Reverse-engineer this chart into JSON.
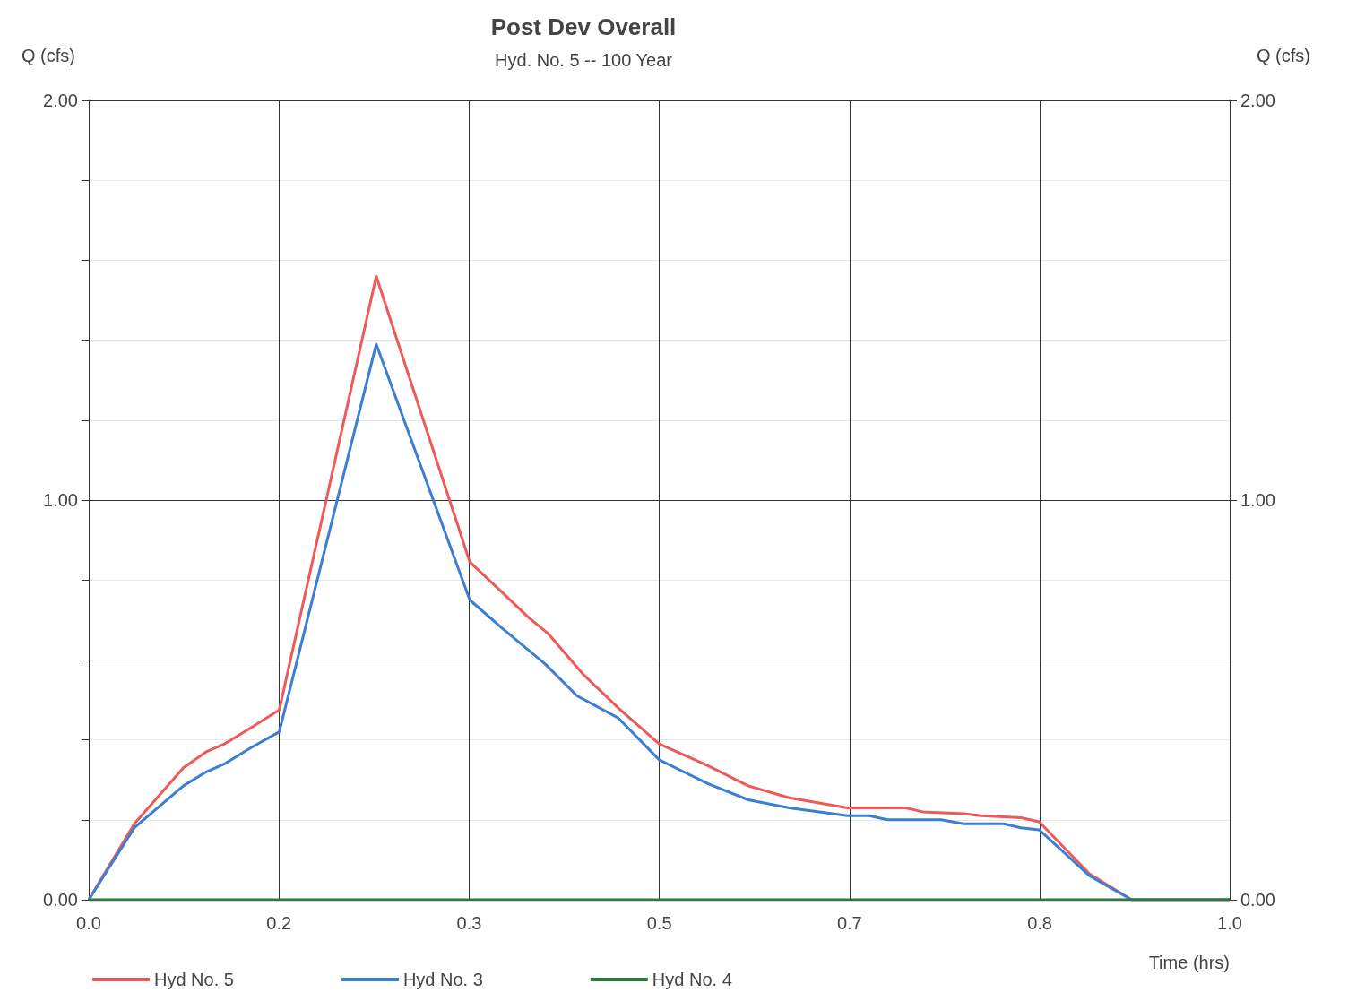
{
  "chart_data": {
    "type": "line",
    "title": "Post Dev Overall",
    "subtitle": "Hyd. No. 5 -- 100 Year",
    "xlabel": "Time (hrs)",
    "ylabel": "Q (cfs)",
    "y2label": "Q (cfs)",
    "xlim": [
      0,
      1
    ],
    "xticks": [
      {
        "value": 0,
        "label": "0.0"
      },
      {
        "value": 0.1667,
        "label": "0.2"
      },
      {
        "value": 0.3333,
        "label": "0.3"
      },
      {
        "value": 0.5,
        "label": "0.5"
      },
      {
        "value": 0.6667,
        "label": "0.7"
      },
      {
        "value": 0.8333,
        "label": "0.8"
      },
      {
        "value": 1,
        "label": "1.0"
      }
    ],
    "ylim": [
      0,
      2
    ],
    "yticks": [
      {
        "value": 0,
        "label": "0.00"
      },
      {
        "value": 0.2,
        "label": null
      },
      {
        "value": 0.4,
        "label": null
      },
      {
        "value": 0.6,
        "label": null
      },
      {
        "value": 0.8,
        "label": null
      },
      {
        "value": 1,
        "label": "1.00"
      },
      {
        "value": 1.2,
        "label": null
      },
      {
        "value": 1.4,
        "label": null
      },
      {
        "value": 1.6,
        "label": null
      },
      {
        "value": 1.8,
        "label": null
      },
      {
        "value": 2,
        "label": "2.00"
      }
    ],
    "y2lim": [
      0,
      2
    ],
    "y2ticks": [
      {
        "value": 0,
        "label": "0.00"
      },
      {
        "value": 1,
        "label": "1.00"
      },
      {
        "value": 2,
        "label": "2.00"
      }
    ],
    "grid": true,
    "legend": "bottom left",
    "marker": "none",
    "line_style": "solid",
    "series": [
      {
        "name": "Hyd No. 5",
        "color": "#ee5a5a",
        "x": [
          0,
          0.04,
          0.083,
          0.103,
          0.119,
          0.142,
          0.167,
          0.252,
          0.334,
          0.362,
          0.386,
          0.403,
          0.433,
          0.464,
          0.5,
          0.543,
          0.578,
          0.614,
          0.665,
          0.716,
          0.731,
          0.767,
          0.782,
          0.817,
          0.833,
          0.877,
          0.914,
          1
        ],
        "values": [
          0,
          0.19,
          0.33,
          0.37,
          0.39,
          0.43,
          0.475,
          1.56,
          0.845,
          0.77,
          0.705,
          0.665,
          0.565,
          0.48,
          0.39,
          0.335,
          0.285,
          0.255,
          0.23,
          0.23,
          0.22,
          0.215,
          0.21,
          0.205,
          0.195,
          0.065,
          0,
          0
        ]
      },
      {
        "name": "Hyd No. 3",
        "color": "#3b7fd4",
        "x": [
          0,
          0.04,
          0.083,
          0.103,
          0.119,
          0.142,
          0.167,
          0.252,
          0.334,
          0.362,
          0.4,
          0.428,
          0.464,
          0.5,
          0.543,
          0.578,
          0.614,
          0.665,
          0.684,
          0.7,
          0.747,
          0.767,
          0.802,
          0.817,
          0.833,
          0.877,
          0.914,
          1
        ],
        "values": [
          0,
          0.18,
          0.285,
          0.32,
          0.34,
          0.38,
          0.42,
          1.39,
          0.75,
          0.68,
          0.59,
          0.51,
          0.455,
          0.35,
          0.29,
          0.25,
          0.23,
          0.21,
          0.21,
          0.2,
          0.2,
          0.19,
          0.19,
          0.18,
          0.175,
          0.06,
          0,
          0
        ]
      },
      {
        "name": "Hyd No. 4",
        "color": "#2e7a3c",
        "x": [
          0,
          1
        ],
        "values": [
          0,
          0
        ]
      }
    ]
  }
}
